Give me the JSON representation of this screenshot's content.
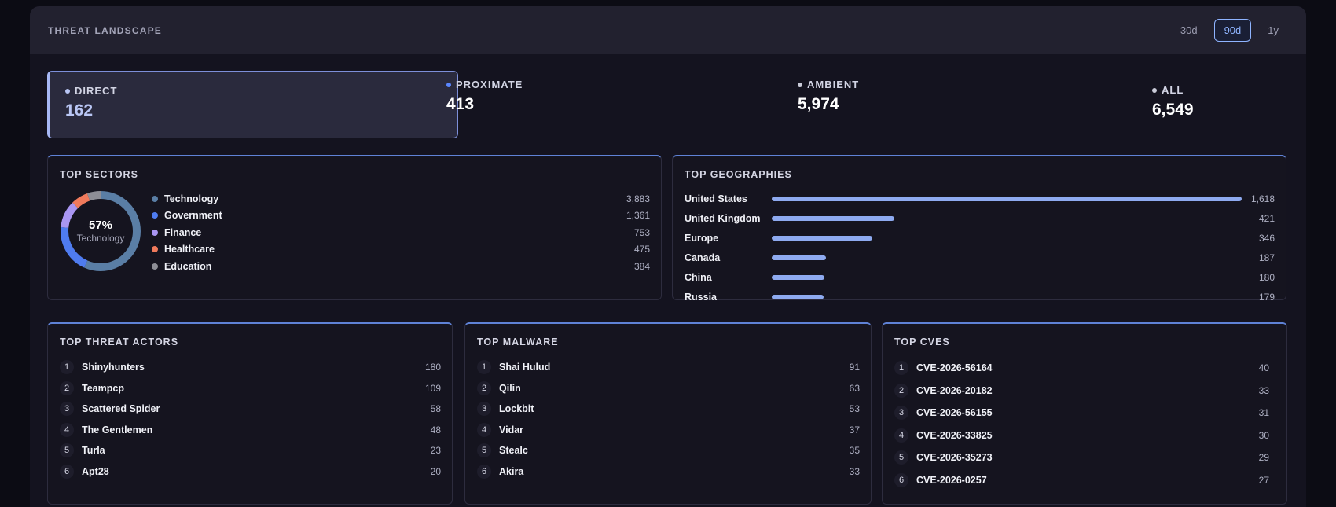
{
  "header": {
    "title": "THREAT LANDSCAPE",
    "ranges": [
      "30d",
      "90d",
      "1y"
    ],
    "active_range": "90d"
  },
  "stats": [
    {
      "label": "DIRECT",
      "value": "162",
      "color": "#b9c6f4"
    },
    {
      "label": "PROXIMATE",
      "value": "413",
      "color": "#5a86ff"
    },
    {
      "label": "AMBIENT",
      "value": "5,974",
      "color": "#c9cbd8"
    },
    {
      "label": "ALL",
      "value": "6,549",
      "color": "#c9cbd8"
    }
  ],
  "sectors": {
    "title": "TOP SECTORS",
    "center_pct": "57%",
    "center_label": "Technology",
    "items": [
      {
        "name": "Technology",
        "value": "3,883",
        "num": 3883,
        "color": "#5a7ea5"
      },
      {
        "name": "Government",
        "value": "1,361",
        "num": 1361,
        "color": "#4f7cf0"
      },
      {
        "name": "Finance",
        "value": "753",
        "num": 753,
        "color": "#a996f2"
      },
      {
        "name": "Healthcare",
        "value": "475",
        "num": 475,
        "color": "#f07a5c"
      },
      {
        "name": "Education",
        "value": "384",
        "num": 384,
        "color": "#8e8e96"
      }
    ]
  },
  "geographies": {
    "title": "TOP GEOGRAPHIES",
    "max": 1618,
    "items": [
      {
        "name": "United States",
        "value": "1,618",
        "num": 1618
      },
      {
        "name": "United Kingdom",
        "value": "421",
        "num": 421
      },
      {
        "name": "Europe",
        "value": "346",
        "num": 346
      },
      {
        "name": "Canada",
        "value": "187",
        "num": 187
      },
      {
        "name": "China",
        "value": "180",
        "num": 180
      },
      {
        "name": "Russia",
        "value": "179",
        "num": 179
      }
    ]
  },
  "actors": {
    "title": "TOP THREAT ACTORS",
    "items": [
      {
        "rank": "1",
        "name": "Shinyhunters",
        "value": "180"
      },
      {
        "rank": "2",
        "name": "Teampcp",
        "value": "109"
      },
      {
        "rank": "3",
        "name": "Scattered Spider",
        "value": "58"
      },
      {
        "rank": "4",
        "name": "The Gentlemen",
        "value": "48"
      },
      {
        "rank": "5",
        "name": "Turla",
        "value": "23"
      },
      {
        "rank": "6",
        "name": "Apt28",
        "value": "20"
      }
    ]
  },
  "malware": {
    "title": "TOP MALWARE",
    "items": [
      {
        "rank": "1",
        "name": "Shai Hulud",
        "value": "91"
      },
      {
        "rank": "2",
        "name": "Qilin",
        "value": "63"
      },
      {
        "rank": "3",
        "name": "Lockbit",
        "value": "53"
      },
      {
        "rank": "4",
        "name": "Vidar",
        "value": "37"
      },
      {
        "rank": "5",
        "name": "Stealc",
        "value": "35"
      },
      {
        "rank": "6",
        "name": "Akira",
        "value": "33"
      }
    ]
  },
  "cves": {
    "title": "TOP CVES",
    "items": [
      {
        "rank": "1",
        "name": "CVE-2026-56164",
        "value": "40"
      },
      {
        "rank": "2",
        "name": "CVE-2026-20182",
        "value": "33"
      },
      {
        "rank": "3",
        "name": "CVE-2026-56155",
        "value": "31"
      },
      {
        "rank": "4",
        "name": "CVE-2026-33825",
        "value": "30"
      },
      {
        "rank": "5",
        "name": "CVE-2026-35273",
        "value": "29"
      },
      {
        "rank": "6",
        "name": "CVE-2026-0257",
        "value": "27"
      }
    ]
  }
}
